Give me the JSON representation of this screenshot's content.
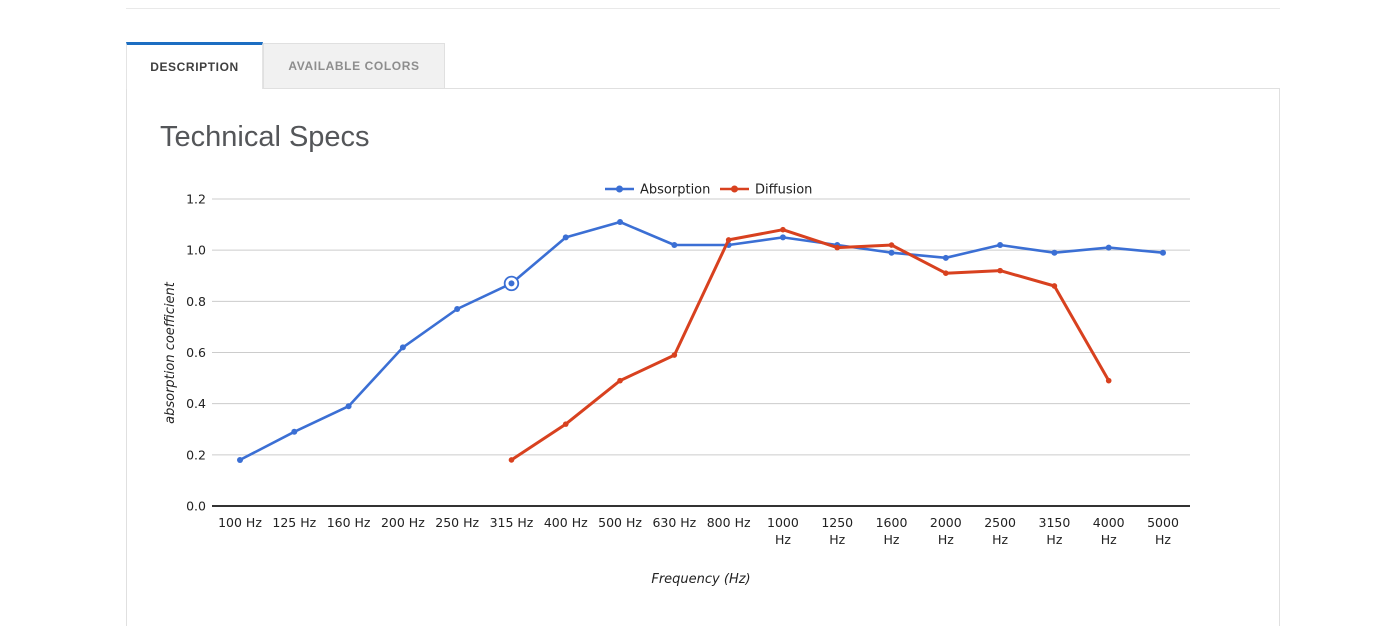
{
  "tabs": {
    "items": [
      {
        "label": "DESCRIPTION",
        "active": true
      },
      {
        "label": "AVAILABLE COLORS",
        "active": false
      }
    ],
    "active_accent_color": "#1c6ec2"
  },
  "content": {
    "title": "Technical Specs"
  },
  "chart_data": {
    "type": "line",
    "title": "",
    "categories": [
      "100 Hz",
      "125 Hz",
      "160 Hz",
      "200 Hz",
      "250 Hz",
      "315 Hz",
      "400 Hz",
      "500 Hz",
      "630 Hz",
      "800 Hz",
      "1000 Hz",
      "1250 Hz",
      "1600 Hz",
      "2000 Hz",
      "2500 Hz",
      "3150 Hz",
      "4000 Hz",
      "5000 Hz"
    ],
    "x_label_wrap_from_index": 10,
    "series": [
      {
        "name": "Absorption",
        "color": "#3b6fd4",
        "line_width": 2.6,
        "point_radius": 3,
        "values": [
          0.18,
          0.29,
          0.39,
          0.62,
          0.77,
          0.87,
          1.05,
          1.11,
          1.02,
          1.02,
          1.05,
          1.02,
          0.99,
          0.97,
          1.02,
          0.99,
          1.01,
          0.99
        ]
      },
      {
        "name": "Diffusion",
        "color": "#d8411f",
        "line_width": 3,
        "point_radius": 2.8,
        "values": [
          null,
          null,
          null,
          null,
          null,
          0.18,
          0.32,
          0.49,
          0.59,
          1.04,
          1.08,
          1.01,
          1.02,
          0.91,
          0.92,
          0.86,
          0.49,
          null
        ]
      }
    ],
    "xlabel": "Frequency (Hz)",
    "ylabel": "absorption coefficient",
    "ylim": [
      0,
      1.2
    ],
    "yticks": [
      "0.0",
      "0.2",
      "0.4",
      "0.6",
      "0.8",
      "1.0",
      "1.2"
    ],
    "grid": true,
    "legend_position": "top",
    "gridline_color": "#cccccc",
    "baseline_color": "#333333",
    "tick_label_color": "#222222",
    "axis_title_color": "#222222",
    "highlight": {
      "series_index": 0,
      "point_index": 5
    }
  }
}
